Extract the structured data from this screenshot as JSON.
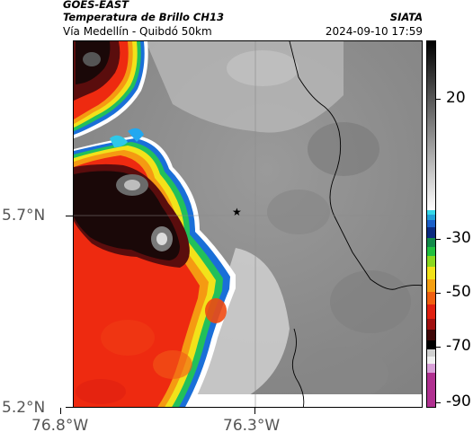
{
  "header": {
    "satellite": "GOES-EAST",
    "product": "Temperatura de Brillo CH13",
    "region": "Vía Medellín - Quibdó 50km",
    "agency": "SIATA",
    "datetime": "2024-09-10 17:59"
  },
  "axes": {
    "lat_labels": [
      "5.7°N",
      "5.2°N"
    ],
    "lon_labels": [
      "76.8°W",
      "76.3°W"
    ]
  },
  "colorbar": {
    "labels": [
      "20",
      "-30",
      "-50",
      "-70",
      "-90"
    ]
  },
  "colors": {
    "cold_cloud": "#ee2a10",
    "deep_core": "#1a0808",
    "clear_ground": "#8f8f8f"
  },
  "marker": {
    "symbol": "★"
  }
}
